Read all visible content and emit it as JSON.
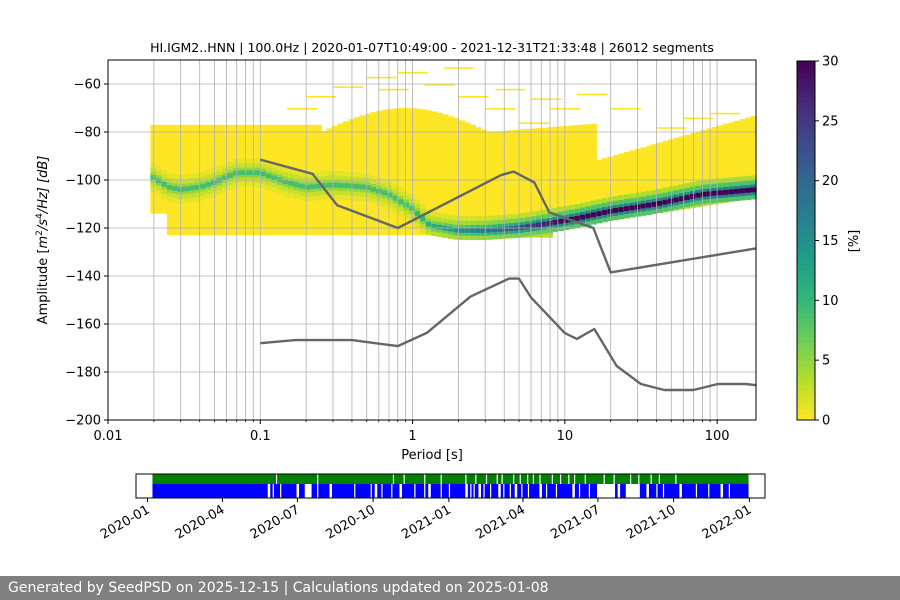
{
  "chart_data": [
    {
      "type": "heatmap",
      "title": "HI.IGM2..HNN | 100.0Hz | 2020-01-07T10:49:00 - 2021-12-31T21:33:48 | 26012 segments",
      "xlabel": "Period [s]",
      "ylabel_parts": [
        "Amplitude [",
        "m",
        "2",
        "/s",
        "4",
        "/Hz] [dB]"
      ],
      "x_scale": "log",
      "xlim": [
        0.01,
        180
      ],
      "ylim": [
        -200,
        -50
      ],
      "x_ticks": [
        0.01,
        0.1,
        1,
        10,
        100
      ],
      "x_tick_labels": [
        "0.01",
        "0.1",
        "1",
        "10",
        "100"
      ],
      "y_ticks": [
        -200,
        -180,
        -160,
        -140,
        -120,
        -100,
        -80,
        -60
      ],
      "y_tick_labels": [
        "−200",
        "−180",
        "−160",
        "−140",
        "−120",
        "−100",
        "−80",
        "−60"
      ],
      "grid": true,
      "colorbar": {
        "label": "[%]",
        "range": [
          0,
          30
        ],
        "ticks": [
          0,
          5,
          10,
          15,
          20,
          25,
          30
        ],
        "tick_labels": [
          "0",
          "5",
          "10",
          "15",
          "20",
          "25",
          "30"
        ],
        "colormap": "viridis_r"
      },
      "mode": {
        "period": [
          0.02,
          0.025,
          0.03,
          0.04,
          0.05,
          0.07,
          0.1,
          0.15,
          0.2,
          0.3,
          0.5,
          0.7,
          1.0,
          1.3,
          2,
          3,
          5,
          8,
          12,
          20,
          40,
          80,
          180
        ],
        "db": [
          -99,
          -103,
          -104,
          -103,
          -101,
          -97,
          -97,
          -101,
          -103,
          -102,
          -103,
          -106,
          -112,
          -119,
          -121,
          -121,
          -120,
          -118,
          -116,
          -113,
          -110,
          -106,
          -104
        ]
      },
      "series": [
        {
          "name": "NHNM",
          "color": "#666666",
          "period": [
            0.1,
            0.22,
            0.32,
            0.8,
            3.8,
            4.6,
            6.3,
            7.9,
            15.4,
            20,
            180
          ],
          "db": [
            -91.5,
            -97.4,
            -110.5,
            -120,
            -98,
            -96.5,
            -101,
            -113.5,
            -120,
            -138.5,
            -128.5
          ]
        },
        {
          "name": "NLNM",
          "color": "#666666",
          "period": [
            0.1,
            0.17,
            0.4,
            0.8,
            1.24,
            2.4,
            4.3,
            5.0,
            6.0,
            10,
            12,
            15.6,
            21.9,
            31.6,
            45,
            70,
            101,
            154,
            180
          ],
          "db": [
            -168,
            -166.7,
            -166.7,
            -169.2,
            -163.7,
            -148.6,
            -141.1,
            -141.1,
            -149.0,
            -163.8,
            -166.2,
            -162.1,
            -177.5,
            -185.0,
            -187.5,
            -187.5,
            -185.0,
            -185.0,
            -185.5
          ]
        }
      ]
    },
    {
      "type": "timeline",
      "x_tick_labels": [
        "2020-01",
        "2020-04",
        "2020-07",
        "2020-10",
        "2021-01",
        "2021-04",
        "2021-07",
        "2021-10",
        "2022-01"
      ],
      "data_start": "2020-01-07",
      "data_end": "2021-12-31",
      "series": [
        {
          "name": "green",
          "color": "#008000"
        },
        {
          "name": "blue",
          "color": "#0000ff"
        }
      ]
    }
  ],
  "footer": {
    "text": "Generated by SeedPSD on 2025-12-15 | Calculations updated on 2025-01-08"
  }
}
